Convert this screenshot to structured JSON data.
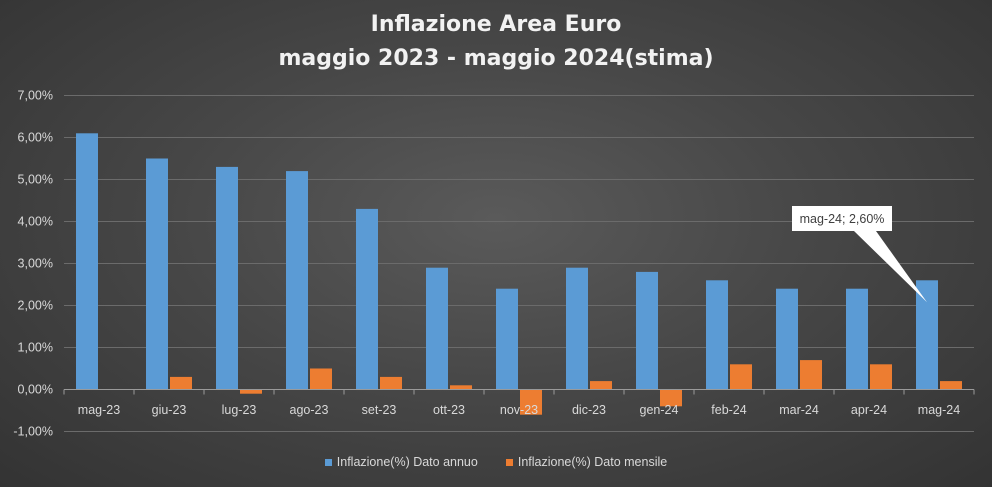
{
  "chart_data": {
    "type": "bar",
    "title": "Inflazione Area Euro",
    "subtitle": "maggio 2023 - maggio 2024(stima)",
    "categories": [
      "mag-23",
      "giu-23",
      "lug-23",
      "ago-23",
      "set-23",
      "ott-23",
      "nov-23",
      "dic-23",
      "gen-24",
      "feb-24",
      "mar-24",
      "apr-24",
      "mag-24"
    ],
    "series": [
      {
        "name": "Inflazione(%) Dato annuo",
        "color": "#5b9bd5",
        "values": [
          6.1,
          5.5,
          5.3,
          5.2,
          4.3,
          2.9,
          2.4,
          2.9,
          2.8,
          2.6,
          2.4,
          2.4,
          2.6
        ]
      },
      {
        "name": "Inflazione(%) Dato mensile",
        "color": "#ed7d31",
        "values": [
          0.0,
          0.3,
          -0.1,
          0.5,
          0.3,
          0.1,
          -0.6,
          0.2,
          -0.4,
          0.6,
          0.7,
          0.6,
          0.2
        ]
      }
    ],
    "y_ticks": [
      "-1,00%",
      "0,00%",
      "1,00%",
      "2,00%",
      "3,00%",
      "4,00%",
      "5,00%",
      "6,00%",
      "7,00%"
    ],
    "ylim": [
      -1,
      7
    ],
    "grid": true,
    "legend_position": "bottom",
    "annotation": {
      "text": "mag-24; 2,60%",
      "category": "mag-24",
      "series": 0
    }
  }
}
